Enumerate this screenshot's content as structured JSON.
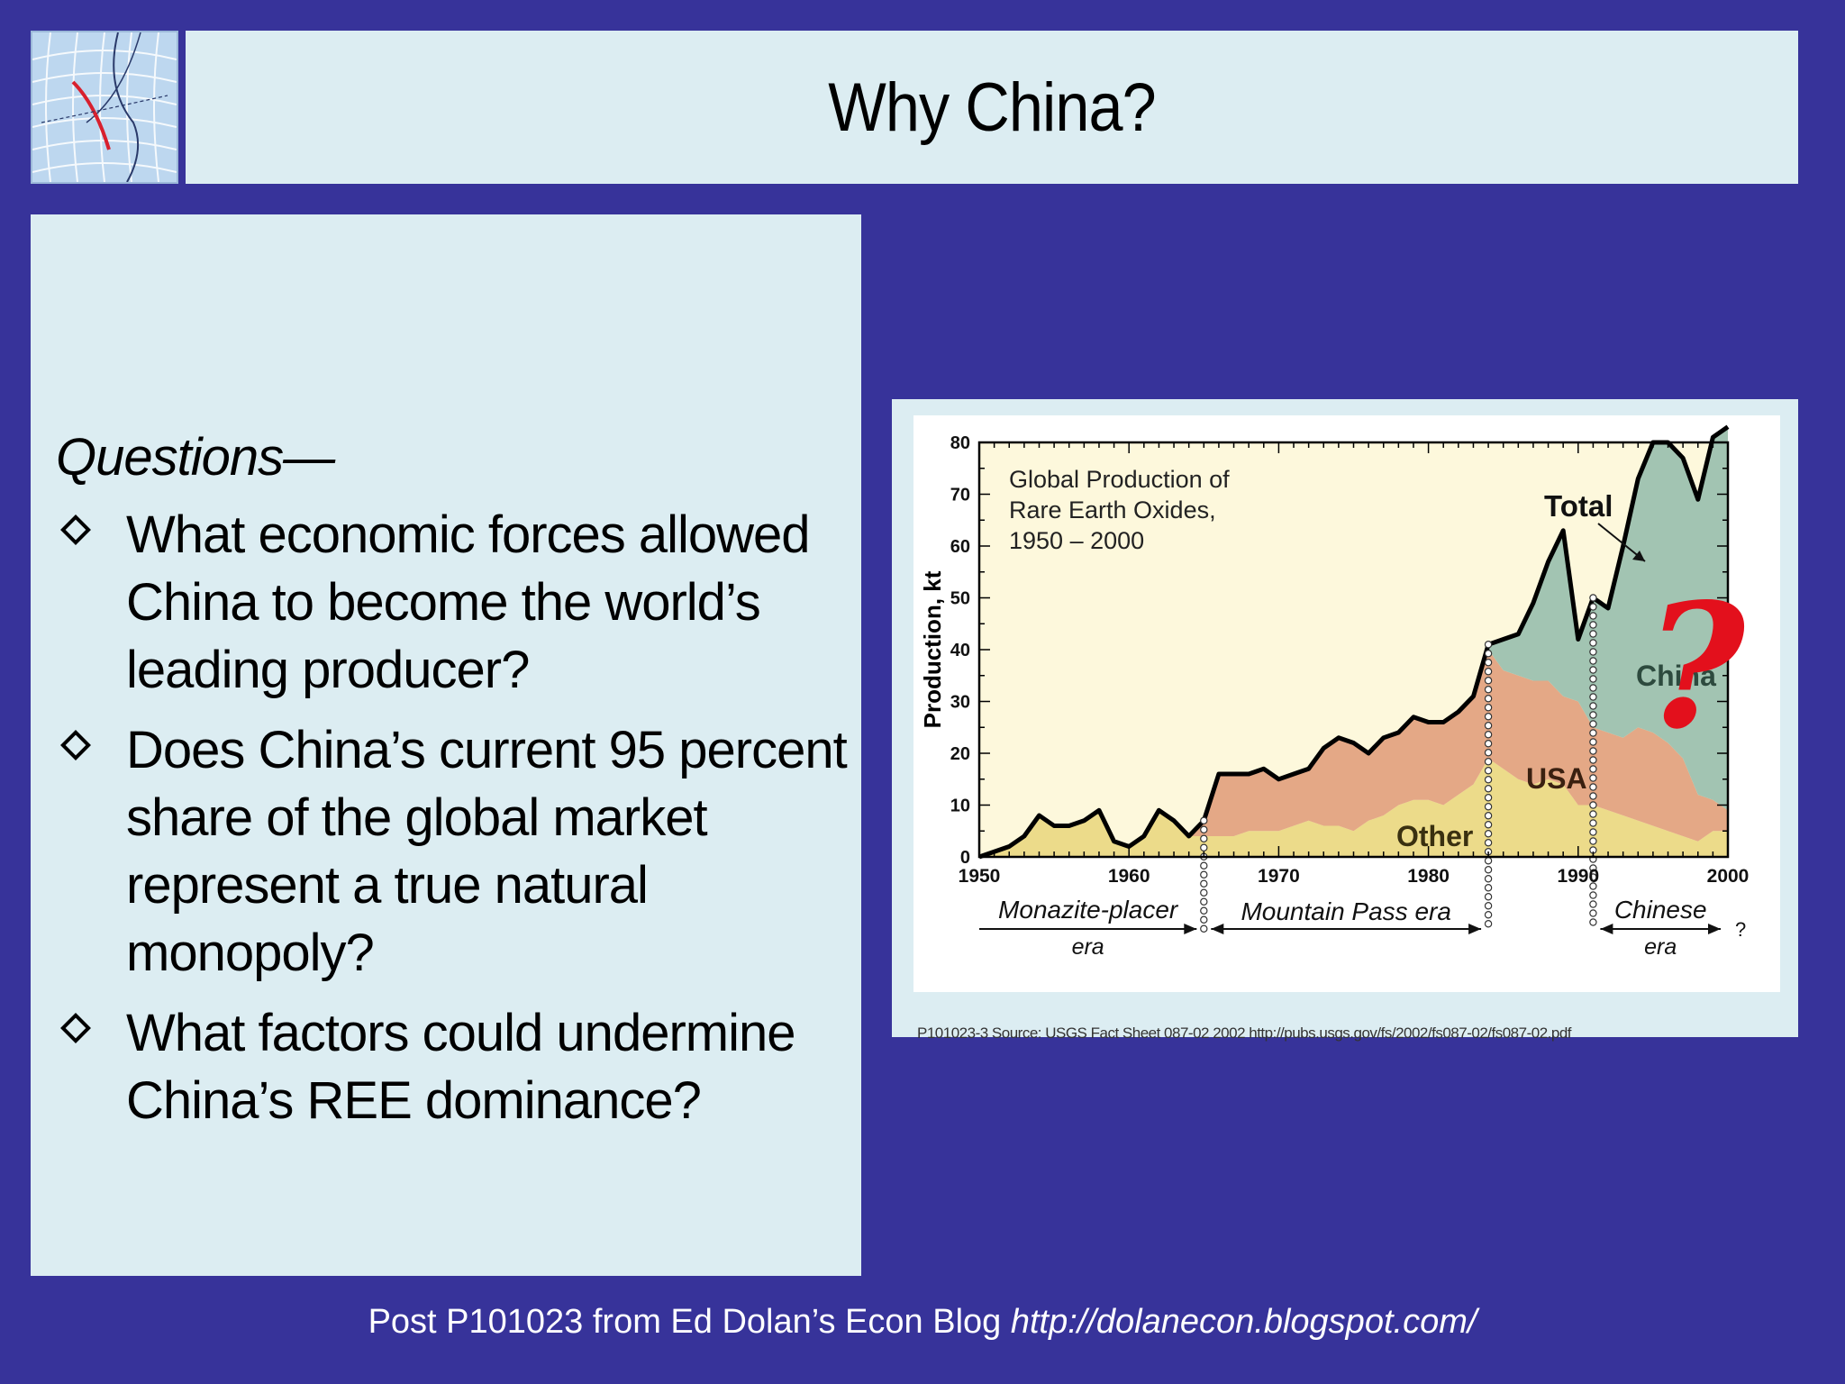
{
  "slide": {
    "title": "Why China?",
    "questions_heading": "Questions—",
    "bullets": [
      "What economic forces allowed China to become the world’s leading producer?",
      "Does China’s current 95 percent share of the global market represent a true natural monopoly?",
      "What factors could undermine China’s REE dominance?"
    ],
    "footer_text": "Post P101023 from Ed Dolan’s Econ Blog ",
    "footer_url": "http://dolanecon.blogspot.com/",
    "question_mark": "?"
  },
  "chart_data": {
    "type": "area",
    "title": "Global Production of Rare Earth Oxides, 1950 – 2000",
    "title_lines": [
      "Global Production of",
      "Rare Earth Oxides,",
      "1950 – 2000"
    ],
    "ylabel": "Production, kt",
    "xlim": [
      1950,
      2000
    ],
    "ylim": [
      0,
      80
    ],
    "x_ticks": [
      1950,
      1960,
      1970,
      1980,
      1990,
      2000
    ],
    "y_ticks": [
      0,
      10,
      20,
      30,
      40,
      50,
      60,
      70,
      80
    ],
    "stacked": true,
    "x": [
      1950,
      1951,
      1952,
      1953,
      1954,
      1955,
      1956,
      1957,
      1958,
      1959,
      1960,
      1961,
      1962,
      1963,
      1964,
      1965,
      1966,
      1967,
      1968,
      1969,
      1970,
      1971,
      1972,
      1973,
      1974,
      1975,
      1976,
      1977,
      1978,
      1979,
      1980,
      1981,
      1982,
      1983,
      1984,
      1985,
      1986,
      1987,
      1988,
      1989,
      1990,
      1991,
      1992,
      1993,
      1994,
      1995,
      1996,
      1997,
      1998,
      1999,
      2000
    ],
    "series": [
      {
        "name": "Other",
        "color": "#ecdb8a",
        "values": [
          0,
          1,
          2,
          4,
          8,
          6,
          6,
          7,
          9,
          3,
          2,
          4,
          9,
          7,
          4,
          4,
          4,
          4,
          5,
          5,
          5,
          6,
          7,
          6,
          6,
          5,
          7,
          8,
          10,
          11,
          11,
          10,
          12,
          14,
          19,
          17,
          15,
          14,
          15,
          14,
          10,
          10,
          9,
          8,
          7,
          6,
          5,
          4,
          3,
          5,
          5
        ]
      },
      {
        "name": "USA",
        "color": "#e4a886",
        "values": [
          0,
          0,
          0,
          0,
          0,
          0,
          0,
          0,
          0,
          0,
          0,
          0,
          0,
          0,
          0,
          3,
          12,
          12,
          11,
          12,
          10,
          10,
          10,
          15,
          17,
          17,
          13,
          15,
          14,
          16,
          15,
          16,
          16,
          17,
          21,
          19,
          20,
          20,
          19,
          17,
          20,
          15,
          15,
          15,
          18,
          18,
          17,
          15,
          9,
          6,
          4
        ]
      },
      {
        "name": "China",
        "color": "#a2c4b2",
        "values": [
          0,
          0,
          0,
          0,
          0,
          0,
          0,
          0,
          0,
          0,
          0,
          0,
          0,
          0,
          0,
          0,
          0,
          0,
          0,
          0,
          0,
          0,
          0,
          0,
          0,
          0,
          0,
          0,
          0,
          0,
          0,
          0,
          0,
          0,
          1,
          6,
          8,
          15,
          23,
          32,
          12,
          25,
          24,
          37,
          48,
          56,
          58,
          58,
          57,
          70,
          74
        ]
      }
    ],
    "total_label": "Total",
    "total_color": "#000000",
    "eras": [
      {
        "name": "Monazite-placer era",
        "lines": [
          "Monazite-placer",
          "era"
        ],
        "from": 1950,
        "to": 1965
      },
      {
        "name": "Mountain Pass era",
        "lines": [
          "Mountain Pass era"
        ],
        "from": 1965,
        "to": 1984
      },
      {
        "name": "Chinese era",
        "lines": [
          "Chinese",
          "era"
        ],
        "from": 1991,
        "to": 2000
      }
    ],
    "era_boundaries": [
      1965,
      1984,
      1991
    ],
    "era_end_mark": "?",
    "source": "P101023-3 Source: USGS Fact Sheet 087-02 2002 http://pubs.usgs.gov/fs/2002/fs087-02/fs087-02.pdf",
    "question_color": "#e3101c"
  }
}
